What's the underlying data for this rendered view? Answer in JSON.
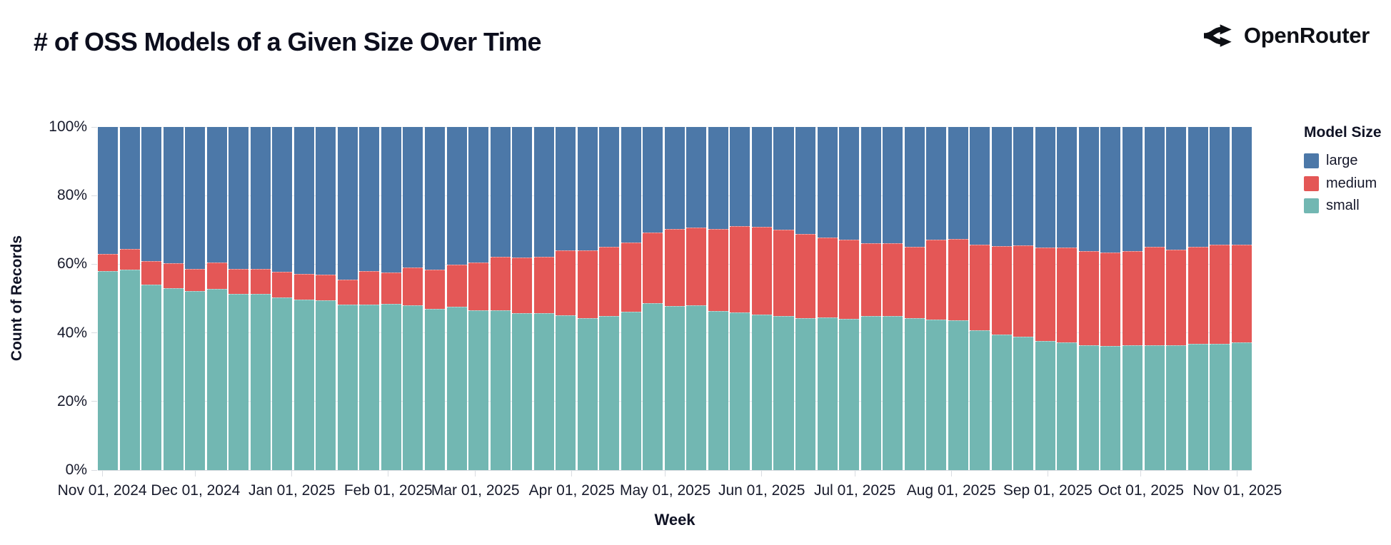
{
  "header": {
    "title": "# of OSS Models of a Given Size Over Time",
    "brand": "OpenRouter"
  },
  "legend": {
    "title": "Model Size",
    "items": [
      {
        "label": "large",
        "color": "#4c78a8"
      },
      {
        "label": "medium",
        "color": "#e45756"
      },
      {
        "label": "small",
        "color": "#72b7b2"
      }
    ]
  },
  "axes": {
    "y_title": "Count of Records",
    "x_title": "Week",
    "y_ticks": [
      {
        "label": "100%",
        "value": 100
      },
      {
        "label": "80%",
        "value": 80
      },
      {
        "label": "60%",
        "value": 60
      },
      {
        "label": "40%",
        "value": 40
      },
      {
        "label": "20%",
        "value": 20
      },
      {
        "label": "0%",
        "value": 0
      }
    ],
    "x_ticks": [
      {
        "label": "Nov 01, 2024",
        "week": 0
      },
      {
        "label": "Dec 01, 2024",
        "week": 4.29
      },
      {
        "label": "Jan 01, 2025",
        "week": 8.71
      },
      {
        "label": "Feb 01, 2025",
        "week": 13.14
      },
      {
        "label": "Mar 01, 2025",
        "week": 17.14
      },
      {
        "label": "Apr 01, 2025",
        "week": 21.57
      },
      {
        "label": "May 01, 2025",
        "week": 25.86
      },
      {
        "label": "Jun 01, 2025",
        "week": 30.29
      },
      {
        "label": "Jul 01, 2025",
        "week": 34.57
      },
      {
        "label": "Aug 01, 2025",
        "week": 39.0
      },
      {
        "label": "Sep 01, 2025",
        "week": 43.43
      },
      {
        "label": "Oct 01, 2025",
        "week": 47.71
      },
      {
        "label": "Nov 01, 2025",
        "week": 52.14
      }
    ]
  },
  "chart_data": {
    "type": "bar",
    "subtype": "stacked-100-percent",
    "title": "# of OSS Models of a Given Size Over Time",
    "xlabel": "Week",
    "ylabel": "Count of Records",
    "ylim": [
      0,
      100
    ],
    "y_unit": "%",
    "num_weeks": 53,
    "x_range": "weekly bins from Nov 01, 2024 to Nov 01, 2025",
    "legend_position": "right",
    "grid": true,
    "stack_order_bottom_to_top": [
      "small",
      "medium",
      "large"
    ],
    "series": [
      {
        "name": "small",
        "color": "#72b7b2",
        "values": [
          58.0,
          58.5,
          54.0,
          53.0,
          52.2,
          52.8,
          51.4,
          51.4,
          50.4,
          49.7,
          49.5,
          48.3,
          48.3,
          48.5,
          48.0,
          46.9,
          47.6,
          46.6,
          46.5,
          45.8,
          45.7,
          45.2,
          44.2,
          45.0,
          46.2,
          48.6,
          47.9,
          48.0,
          46.4,
          46.0,
          45.4,
          44.9,
          44.2,
          44.5,
          44.0,
          45.0,
          45.0,
          44.2,
          43.9,
          43.7,
          40.8,
          39.5,
          38.8,
          37.6,
          37.2,
          36.4,
          36.2,
          36.3,
          36.3,
          36.3,
          36.8,
          36.7,
          37.3
        ]
      },
      {
        "name": "medium",
        "color": "#e45756",
        "values": [
          5.0,
          6.0,
          7.0,
          7.3,
          6.4,
          7.8,
          7.3,
          7.3,
          7.5,
          7.4,
          7.5,
          7.2,
          9.8,
          9.0,
          11.1,
          11.5,
          12.3,
          14.0,
          15.7,
          16.2,
          16.4,
          18.9,
          19.9,
          20.0,
          20.2,
          20.7,
          22.4,
          22.7,
          23.9,
          25.0,
          25.5,
          25.1,
          24.6,
          23.3,
          23.2,
          21.2,
          21.2,
          20.9,
          23.2,
          23.7,
          24.9,
          25.7,
          26.7,
          27.3,
          27.6,
          27.5,
          27.3,
          27.5,
          28.8,
          28.0,
          28.3,
          29.1,
          28.4
        ]
      },
      {
        "name": "large",
        "color": "#4c78a8",
        "values": [
          37.0,
          35.5,
          39.0,
          39.7,
          41.4,
          39.4,
          41.3,
          41.3,
          42.1,
          42.9,
          43.0,
          44.5,
          41.9,
          42.5,
          40.9,
          41.6,
          40.1,
          39.4,
          37.8,
          38.0,
          37.9,
          35.9,
          35.9,
          35.0,
          33.6,
          30.7,
          29.7,
          29.3,
          29.7,
          29.0,
          29.1,
          30.0,
          31.2,
          32.2,
          32.8,
          33.8,
          33.8,
          34.9,
          32.9,
          32.6,
          34.3,
          34.8,
          34.5,
          35.1,
          35.2,
          36.1,
          36.5,
          36.2,
          34.9,
          35.7,
          34.9,
          34.2,
          34.3
        ]
      }
    ]
  }
}
